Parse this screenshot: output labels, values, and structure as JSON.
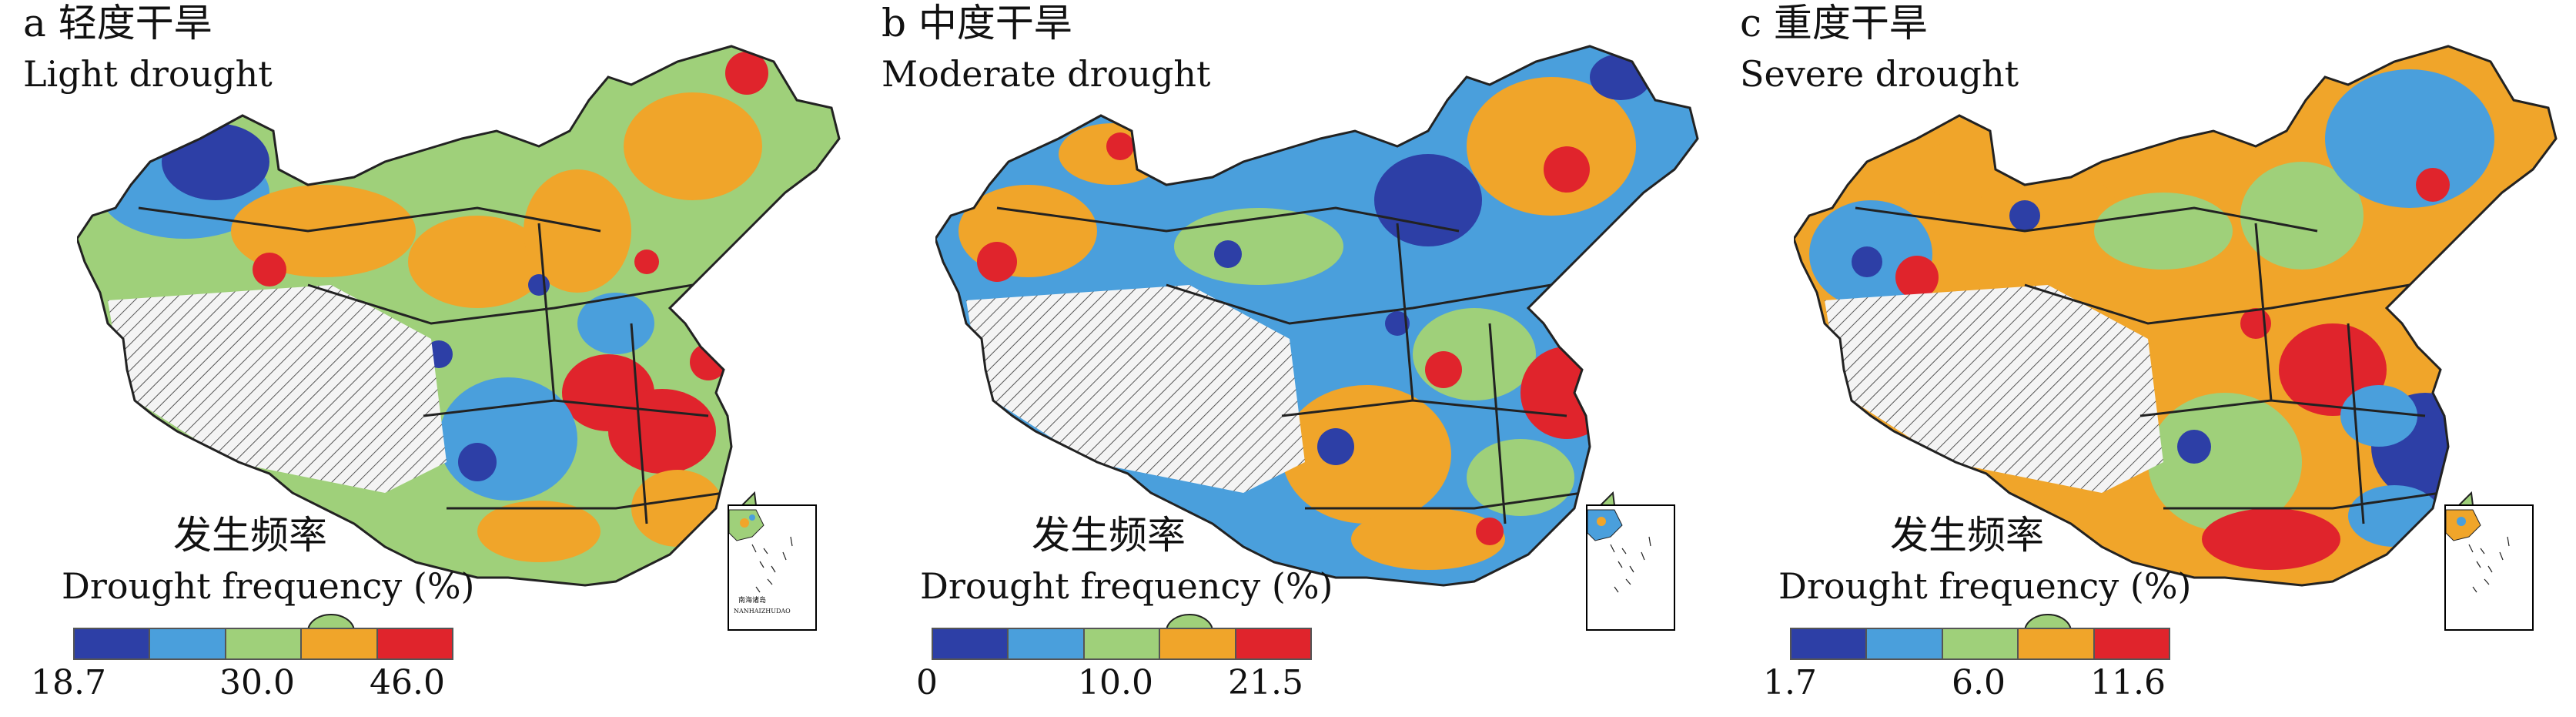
{
  "panels": [
    {
      "title_cn": "a 轻度干旱",
      "title_en": "Light drought",
      "legend_title_cn": "发生频率",
      "legend_title_en": "Drought frequency (%)",
      "ticks": [
        "18.7",
        "30.0",
        "46.0"
      ]
    },
    {
      "title_cn": "b 中度干旱",
      "title_en": "Moderate drought",
      "legend_title_cn": "发生频率",
      "legend_title_en": "Drought frequency (%)",
      "ticks": [
        "0",
        "10.0",
        "21.5"
      ]
    },
    {
      "title_cn": "c 重度干旱",
      "title_en": "Severe drought",
      "legend_title_cn": "发生频率",
      "legend_title_en": "Drought frequency (%)",
      "ticks": [
        "1.7",
        "6.0",
        "11.6"
      ]
    }
  ],
  "inset": {
    "label_cn": "南海诸岛",
    "label_en": "NANHAIZHUDAO"
  },
  "colors": {
    "class_colors": [
      "#2d3fa6",
      "#4a9fdc",
      "#9fd07a",
      "#f0a52a",
      "#e0242c"
    ],
    "no_data_hatch": "#666666",
    "boundary": "#222222"
  }
}
